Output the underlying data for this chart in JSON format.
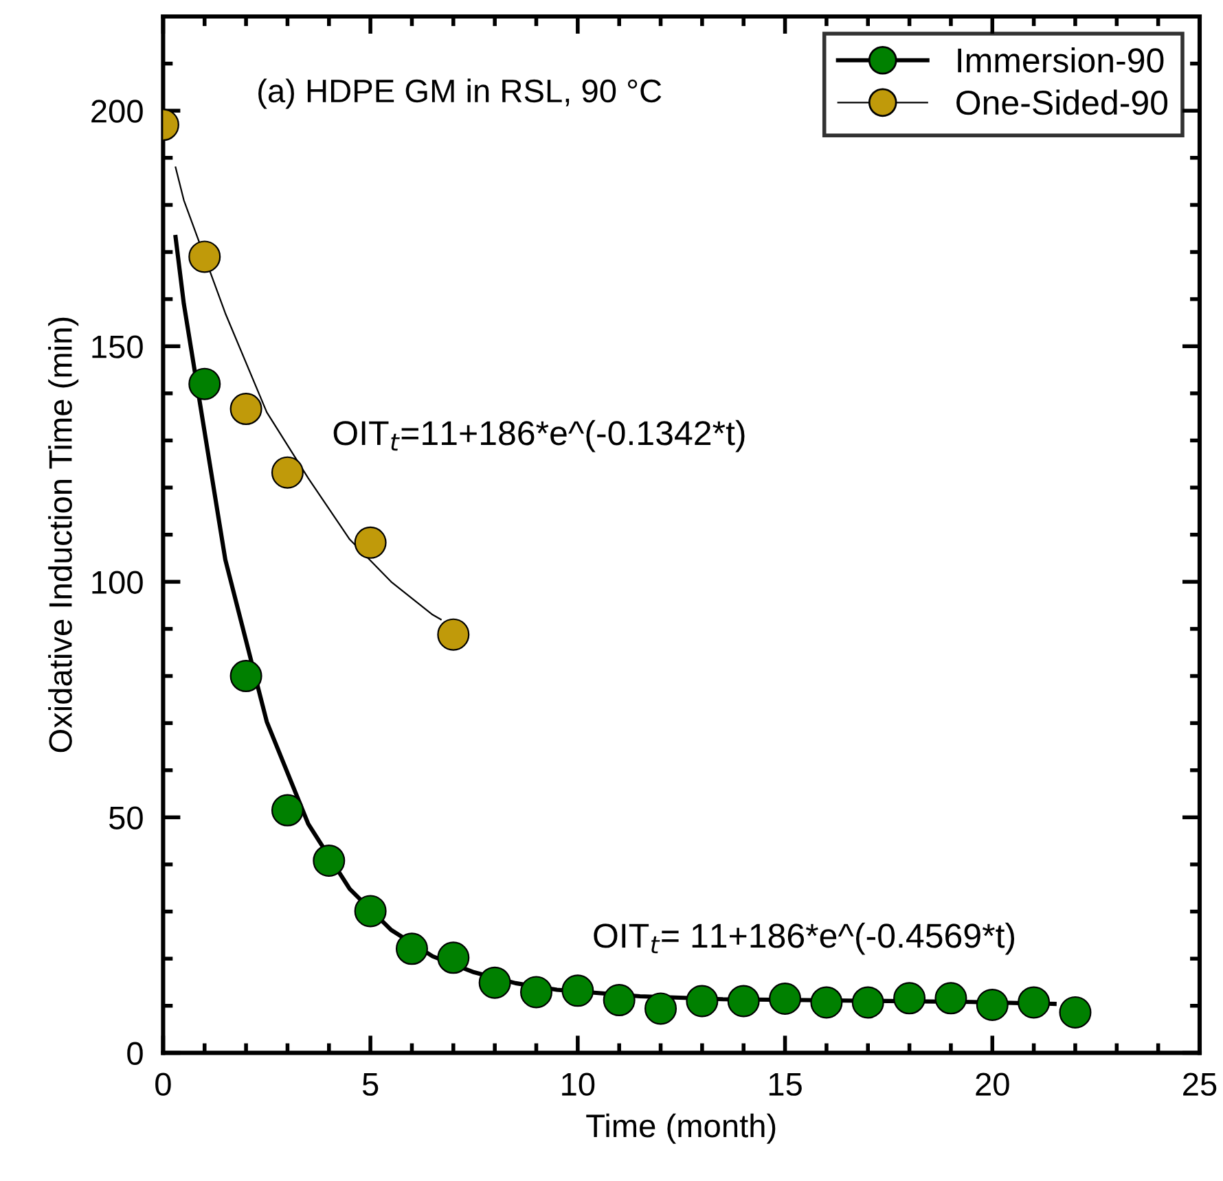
{
  "chart_data": {
    "type": "scatter",
    "title": "(a) HDPE GM in RSL, 90 °C",
    "xlabel": "Time (month)",
    "ylabel": "Oxidative Induction Time (min)",
    "xlim": [
      0,
      25
    ],
    "ylim": [
      0,
      220
    ],
    "xticks": [
      0,
      5,
      10,
      15,
      20,
      25
    ],
    "yticks": [
      0,
      50,
      100,
      150,
      200
    ],
    "legend": "top right",
    "series": [
      {
        "name": "Immersion-90",
        "marker": "circle",
        "color": "#008000",
        "x": [
          1,
          2,
          3,
          4,
          5,
          6,
          7,
          8,
          9,
          10,
          11,
          12,
          13,
          14,
          15,
          16,
          17,
          18,
          19,
          20,
          21,
          22
        ],
        "values": [
          142,
          80,
          51.5,
          40.8,
          30.1,
          22.1,
          20.2,
          14.9,
          12.9,
          13.2,
          11.2,
          9.4,
          11.0,
          11.0,
          11.5,
          10.7,
          10.7,
          11.6,
          11.6,
          10.2,
          10.7,
          8.6
        ]
      },
      {
        "name": "One-Sided-90",
        "marker": "circle",
        "color": "#c09a0a",
        "x": [
          0,
          1,
          2,
          3,
          5,
          7
        ],
        "values": [
          197,
          169,
          136.7,
          123.2,
          108.3,
          88.8
        ]
      },
      {
        "type": "line",
        "color": "#000000",
        "x": [
          0.3,
          0.5,
          1.5,
          2.5,
          3.5,
          4.5,
          5.5,
          6.5,
          7.5,
          8.5,
          9.5,
          11.5,
          13.5,
          15.5,
          17.5,
          19.5,
          21.5
        ],
        "values": [
          173.2,
          159,
          104.7,
          70.3,
          48.6,
          34.8,
          26.1,
          20.5,
          17.1,
          14.8,
          13.4,
          12,
          11.4,
          11.2,
          11,
          10.8,
          10.4
        ]
      },
      {
        "type": "line",
        "color": "#000000",
        "x": [
          0.3,
          0.5,
          1.5,
          2.5,
          3.5,
          4.5,
          5.5,
          6.5,
          6.7
        ],
        "values": [
          188,
          181,
          157,
          136,
          122,
          109,
          100,
          93,
          92
        ]
      }
    ],
    "annotations": [
      "OIT$_{t}$=11+186*e^(-0.1342*t)",
      "OIT$_{t}$= 11+186*e^(-0.4569*t)"
    ]
  }
}
